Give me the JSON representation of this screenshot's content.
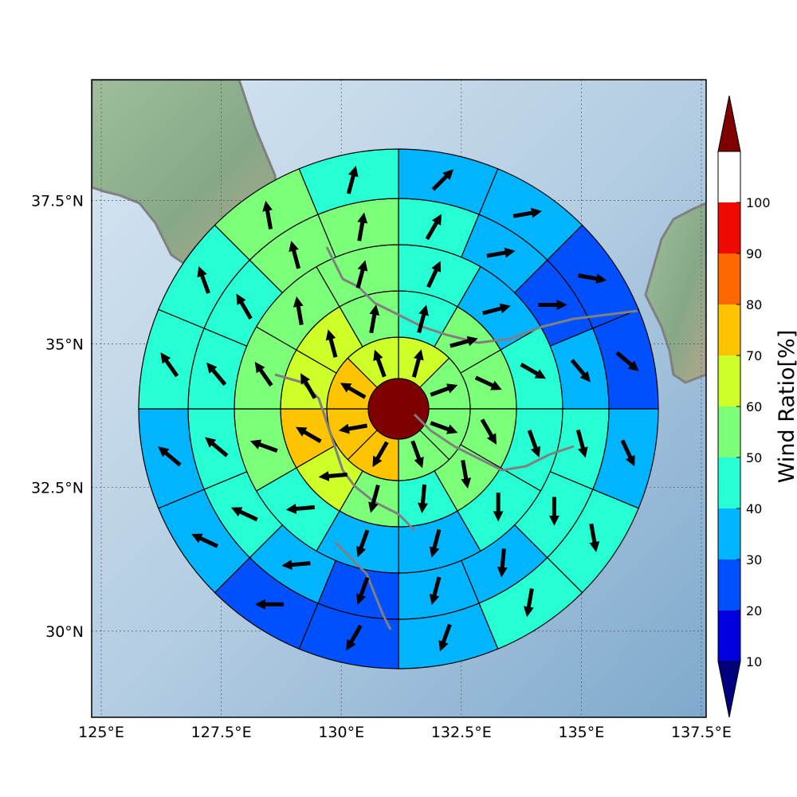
{
  "map": {
    "lon_range": [
      124.8,
      137.6
    ],
    "lat_range": [
      28.5,
      39.6
    ],
    "x_ticks": [
      {
        "value": 125.0,
        "label": "125°E"
      },
      {
        "value": 127.5,
        "label": "127.5°E"
      },
      {
        "value": 130.0,
        "label": "130°E"
      },
      {
        "value": 132.5,
        "label": "132.5°E"
      },
      {
        "value": 135.0,
        "label": "135°E"
      },
      {
        "value": 137.5,
        "label": "137.5°E"
      }
    ],
    "y_ticks": [
      {
        "value": 30.0,
        "label": "30°N"
      },
      {
        "value": 32.5,
        "label": "32.5°N"
      },
      {
        "value": 35.0,
        "label": "35°N"
      },
      {
        "value": 37.5,
        "label": "37.5°N"
      }
    ],
    "grid": true
  },
  "colorbar": {
    "title": "Wind Ratio[%]",
    "ticks": [
      "10",
      "20",
      "30",
      "40",
      "50",
      "60",
      "70",
      "80",
      "90",
      "100"
    ],
    "colors": [
      "#00007f",
      "#0000e0",
      "#0050ff",
      "#00b4ff",
      "#26ffd4",
      "#7cff79",
      "#ceff29",
      "#ffc400",
      "#ff6800",
      "#ef0a00",
      "#7f0000"
    ],
    "extend": "both"
  },
  "chart_data": {
    "type": "polar-sector-grid",
    "center_ratio": 100,
    "rings": [
      {
        "ring": 1,
        "sectors": 8,
        "offset_deg": 0,
        "values": [
          60,
          55,
          50,
          50,
          70,
          70,
          70,
          60
        ],
        "wind_dir_deg": [
          15,
          70,
          110,
          160,
          210,
          260,
          300,
          340
        ]
      },
      {
        "ring": 2,
        "sectors": 12,
        "offset_deg": 0,
        "values": [
          45,
          55,
          50,
          55,
          50,
          45,
          50,
          60,
          70,
          60,
          60,
          55
        ],
        "wind_dir_deg": [
          15,
          75,
          115,
          150,
          170,
          185,
          195,
          265,
          300,
          330,
          345,
          10
        ]
      },
      {
        "ring": 3,
        "sectors": 12,
        "offset_deg": 0,
        "values": [
          45,
          35,
          40,
          45,
          40,
          35,
          35,
          40,
          50,
          55,
          50,
          50
        ],
        "wind_dir_deg": [
          25,
          75,
          120,
          160,
          180,
          195,
          200,
          265,
          290,
          325,
          350,
          15
        ]
      },
      {
        "ring": 4,
        "sectors": 16,
        "offset_deg": 0,
        "values": [
          40,
          35,
          25,
          35,
          40,
          40,
          35,
          30,
          25,
          30,
          40,
          40,
          45,
          45,
          50,
          50
        ],
        "wind_dir_deg": [
          30,
          80,
          90,
          140,
          165,
          180,
          185,
          195,
          200,
          265,
          295,
          310,
          320,
          330,
          345,
          10
        ]
      },
      {
        "ring": 5,
        "sectors": 16,
        "offset_deg": 0,
        "values": [
          35,
          30,
          20,
          25,
          35,
          40,
          40,
          30,
          25,
          20,
          30,
          35,
          40,
          45,
          50,
          40
        ],
        "wind_dir_deg": [
          45,
          80,
          100,
          130,
          155,
          170,
          190,
          200,
          210,
          270,
          295,
          310,
          325,
          340,
          350,
          15
        ]
      }
    ]
  }
}
